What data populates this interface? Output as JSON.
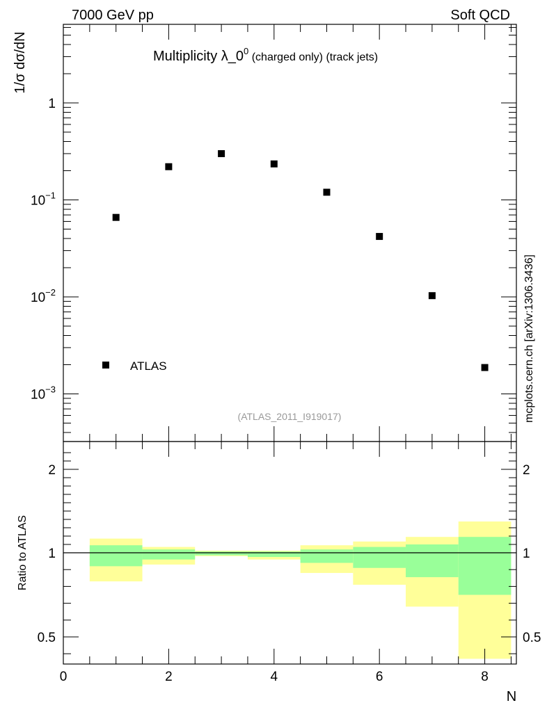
{
  "header": {
    "left": "7000 GeV pp",
    "right": "Soft QCD"
  },
  "title": {
    "main": "Multiplicity λ_0",
    "superscript": "0",
    "suffix": " (charged only) (track jets)"
  },
  "analysis_id": "(ATLAS_2011_I919017)",
  "side_label": "mcplots.cern.ch [arXiv:1306.3436]",
  "colors": {
    "band_outer": "#ffff99",
    "band_inner": "#99ff99",
    "markers": "#000000"
  },
  "chart_data": [
    {
      "type": "scatter",
      "ylabel": "1/σ dσ/dN",
      "yscale": "log",
      "ylim": [
        0.0003,
        5
      ],
      "xlim": [
        0,
        8.6
      ],
      "y_ticks": [
        {
          "label": "1",
          "base": "",
          "exp": ""
        },
        {
          "label": "10",
          "base": "10",
          "exp": "−1"
        },
        {
          "label": "10",
          "base": "10",
          "exp": "−2"
        },
        {
          "label": "10",
          "base": "10",
          "exp": "−3"
        }
      ],
      "legend": {
        "label": "ATLAS",
        "placement": "bottom-left"
      },
      "series": [
        {
          "name": "ATLAS",
          "x": [
            1,
            2,
            3,
            4,
            5,
            6,
            7,
            8
          ],
          "y": [
            0.066,
            0.22,
            0.3,
            0.235,
            0.12,
            0.042,
            0.0103,
            0.00187
          ]
        }
      ]
    },
    {
      "type": "area",
      "ylabel": "Ratio to ATLAS",
      "xlabel": "N",
      "ylim": [
        0.35,
        2.25
      ],
      "xlim": [
        0,
        8.6
      ],
      "y_tick_labels": [
        "2",
        "1",
        "0.5"
      ],
      "x_tick_labels": [
        "0",
        "2",
        "4",
        "6",
        "8"
      ],
      "reference_line": 1,
      "bins": [
        {
          "x_low": 0.5,
          "x_high": 1.5,
          "outer": [
            0.83,
            1.17
          ],
          "inner": [
            0.92,
            1.09
          ]
        },
        {
          "x_low": 1.5,
          "x_high": 2.5,
          "outer": [
            0.93,
            1.07
          ],
          "inner": [
            0.96,
            1.04
          ]
        },
        {
          "x_low": 2.5,
          "x_high": 3.5,
          "outer": [
            0.98,
            1.025
          ],
          "inner": [
            0.985,
            1.015
          ]
        },
        {
          "x_low": 3.5,
          "x_high": 4.5,
          "outer": [
            0.96,
            1.025
          ],
          "inner": [
            0.975,
            1.015
          ]
        },
        {
          "x_low": 4.5,
          "x_high": 5.5,
          "outer": [
            0.88,
            1.09
          ],
          "inner": [
            0.94,
            1.04
          ]
        },
        {
          "x_low": 5.5,
          "x_high": 6.5,
          "outer": [
            0.81,
            1.135
          ],
          "inner": [
            0.91,
            1.07
          ]
        },
        {
          "x_low": 6.5,
          "x_high": 7.5,
          "outer": [
            0.68,
            1.19
          ],
          "inner": [
            0.855,
            1.1
          ]
        },
        {
          "x_low": 7.5,
          "x_high": 8.5,
          "outer": [
            0.37,
            1.375
          ],
          "inner": [
            0.75,
            1.19
          ]
        }
      ]
    }
  ]
}
